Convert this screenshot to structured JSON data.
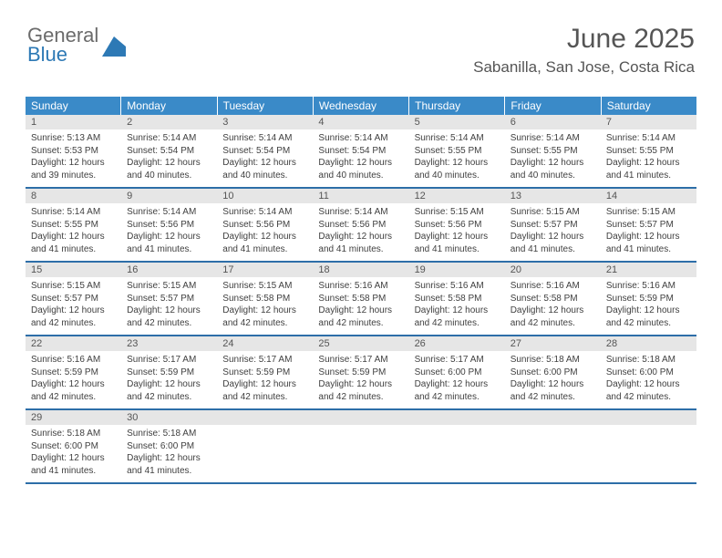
{
  "brand": {
    "general": "General",
    "blue": "Blue"
  },
  "header": {
    "title": "June 2025",
    "location": "Sabanilla, San Jose, Costa Rica"
  },
  "colors": {
    "header_bg": "#3a8ac8",
    "header_text": "#ffffff",
    "daynum_bg": "#e6e6e6",
    "week_border": "#2d6ea8",
    "text": "#404040",
    "logo_gray": "#6b6b6b",
    "logo_blue": "#2d79b5"
  },
  "weekdays": [
    "Sunday",
    "Monday",
    "Tuesday",
    "Wednesday",
    "Thursday",
    "Friday",
    "Saturday"
  ],
  "weeks": [
    [
      {
        "n": "1",
        "sr": "5:13 AM",
        "ss": "5:53 PM",
        "dl": "12 hours and 39 minutes."
      },
      {
        "n": "2",
        "sr": "5:14 AM",
        "ss": "5:54 PM",
        "dl": "12 hours and 40 minutes."
      },
      {
        "n": "3",
        "sr": "5:14 AM",
        "ss": "5:54 PM",
        "dl": "12 hours and 40 minutes."
      },
      {
        "n": "4",
        "sr": "5:14 AM",
        "ss": "5:54 PM",
        "dl": "12 hours and 40 minutes."
      },
      {
        "n": "5",
        "sr": "5:14 AM",
        "ss": "5:55 PM",
        "dl": "12 hours and 40 minutes."
      },
      {
        "n": "6",
        "sr": "5:14 AM",
        "ss": "5:55 PM",
        "dl": "12 hours and 40 minutes."
      },
      {
        "n": "7",
        "sr": "5:14 AM",
        "ss": "5:55 PM",
        "dl": "12 hours and 41 minutes."
      }
    ],
    [
      {
        "n": "8",
        "sr": "5:14 AM",
        "ss": "5:55 PM",
        "dl": "12 hours and 41 minutes."
      },
      {
        "n": "9",
        "sr": "5:14 AM",
        "ss": "5:56 PM",
        "dl": "12 hours and 41 minutes."
      },
      {
        "n": "10",
        "sr": "5:14 AM",
        "ss": "5:56 PM",
        "dl": "12 hours and 41 minutes."
      },
      {
        "n": "11",
        "sr": "5:14 AM",
        "ss": "5:56 PM",
        "dl": "12 hours and 41 minutes."
      },
      {
        "n": "12",
        "sr": "5:15 AM",
        "ss": "5:56 PM",
        "dl": "12 hours and 41 minutes."
      },
      {
        "n": "13",
        "sr": "5:15 AM",
        "ss": "5:57 PM",
        "dl": "12 hours and 41 minutes."
      },
      {
        "n": "14",
        "sr": "5:15 AM",
        "ss": "5:57 PM",
        "dl": "12 hours and 41 minutes."
      }
    ],
    [
      {
        "n": "15",
        "sr": "5:15 AM",
        "ss": "5:57 PM",
        "dl": "12 hours and 42 minutes."
      },
      {
        "n": "16",
        "sr": "5:15 AM",
        "ss": "5:57 PM",
        "dl": "12 hours and 42 minutes."
      },
      {
        "n": "17",
        "sr": "5:15 AM",
        "ss": "5:58 PM",
        "dl": "12 hours and 42 minutes."
      },
      {
        "n": "18",
        "sr": "5:16 AM",
        "ss": "5:58 PM",
        "dl": "12 hours and 42 minutes."
      },
      {
        "n": "19",
        "sr": "5:16 AM",
        "ss": "5:58 PM",
        "dl": "12 hours and 42 minutes."
      },
      {
        "n": "20",
        "sr": "5:16 AM",
        "ss": "5:58 PM",
        "dl": "12 hours and 42 minutes."
      },
      {
        "n": "21",
        "sr": "5:16 AM",
        "ss": "5:59 PM",
        "dl": "12 hours and 42 minutes."
      }
    ],
    [
      {
        "n": "22",
        "sr": "5:16 AM",
        "ss": "5:59 PM",
        "dl": "12 hours and 42 minutes."
      },
      {
        "n": "23",
        "sr": "5:17 AM",
        "ss": "5:59 PM",
        "dl": "12 hours and 42 minutes."
      },
      {
        "n": "24",
        "sr": "5:17 AM",
        "ss": "5:59 PM",
        "dl": "12 hours and 42 minutes."
      },
      {
        "n": "25",
        "sr": "5:17 AM",
        "ss": "5:59 PM",
        "dl": "12 hours and 42 minutes."
      },
      {
        "n": "26",
        "sr": "5:17 AM",
        "ss": "6:00 PM",
        "dl": "12 hours and 42 minutes."
      },
      {
        "n": "27",
        "sr": "5:18 AM",
        "ss": "6:00 PM",
        "dl": "12 hours and 42 minutes."
      },
      {
        "n": "28",
        "sr": "5:18 AM",
        "ss": "6:00 PM",
        "dl": "12 hours and 42 minutes."
      }
    ],
    [
      {
        "n": "29",
        "sr": "5:18 AM",
        "ss": "6:00 PM",
        "dl": "12 hours and 41 minutes."
      },
      {
        "n": "30",
        "sr": "5:18 AM",
        "ss": "6:00 PM",
        "dl": "12 hours and 41 minutes."
      },
      null,
      null,
      null,
      null,
      null
    ]
  ],
  "labels": {
    "sunrise": "Sunrise: ",
    "sunset": "Sunset: ",
    "daylight": "Daylight: "
  }
}
